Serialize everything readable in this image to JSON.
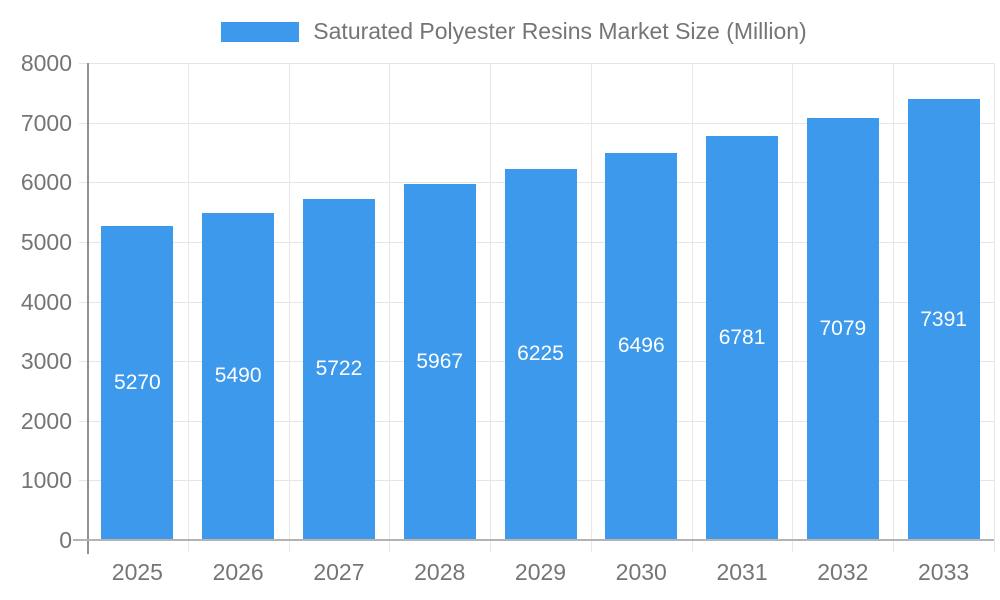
{
  "legend": {
    "label": "Saturated Polyester Resins Market Size (Million)"
  },
  "chart_data": {
    "type": "bar",
    "categories": [
      "2025",
      "2026",
      "2027",
      "2028",
      "2029",
      "2030",
      "2031",
      "2032",
      "2033"
    ],
    "values": [
      5270,
      5490,
      5722,
      5967,
      6225,
      6496,
      6781,
      7079,
      7391
    ],
    "title": "Saturated Polyester Resins Market Size (Million)",
    "xlabel": "",
    "ylabel": "",
    "ylim": [
      0,
      8000
    ],
    "ytick_step": 1000,
    "ytick_labels": [
      "0",
      "1000",
      "2000",
      "3000",
      "4000",
      "5000",
      "6000",
      "7000",
      "8000"
    ],
    "grid": true,
    "legend_position": "top",
    "value_labels": "inside-center"
  },
  "colors": {
    "bar": "#3c99ec",
    "value_label": "#ffffff",
    "axis_text": "#757575",
    "h_gridline": "#e5e5e5",
    "v_gridline": "#e8e8e8",
    "x_axis_line": "#b3b3b3",
    "y_axis_line": "#919191",
    "background": "#ffffff"
  }
}
